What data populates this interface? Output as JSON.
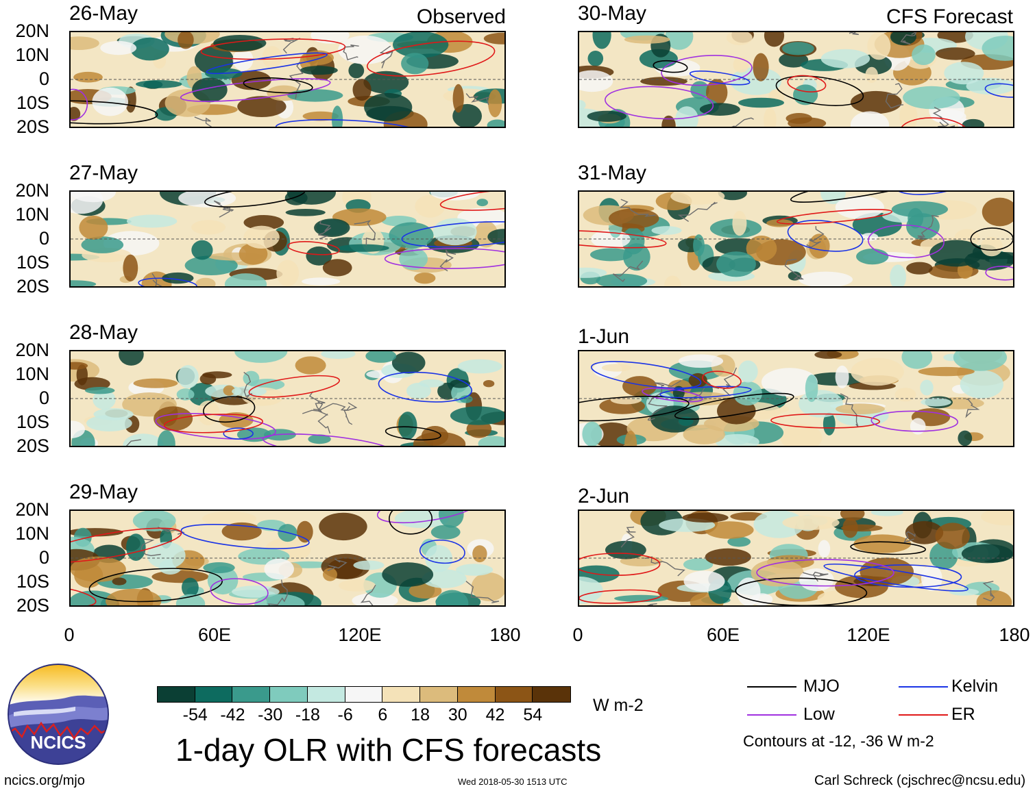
{
  "header": {
    "observed_label": "Observed",
    "forecast_label": "CFS Forecast"
  },
  "observed_panels": [
    {
      "date": "26-May"
    },
    {
      "date": "27-May"
    },
    {
      "date": "28-May"
    },
    {
      "date": "29-May"
    }
  ],
  "forecast_panels": [
    {
      "date": "30-May"
    },
    {
      "date": "31-May"
    },
    {
      "date": "1-Jun"
    },
    {
      "date": "2-Jun"
    }
  ],
  "axes": {
    "lat_labels": [
      "20N",
      "10N",
      "0",
      "10S",
      "20S"
    ],
    "lon_labels": [
      "0",
      "60E",
      "120E",
      "180"
    ]
  },
  "colorbar": {
    "ticks": [
      "-54",
      "-42",
      "-30",
      "-18",
      "-6",
      "6",
      "18",
      "30",
      "42",
      "54"
    ],
    "colors": [
      "#0b3f34",
      "#0d6b5f",
      "#3a9a8c",
      "#7fcbbd",
      "#c4e9e1",
      "#f6f6f6",
      "#f4e2b8",
      "#dcbb7c",
      "#c08a3a",
      "#8c5516",
      "#5a3309"
    ],
    "units": "W m-2"
  },
  "legend": {
    "items": [
      {
        "label": "MJO",
        "color": "#000000"
      },
      {
        "label": "Kelvin",
        "color": "#1a33e6"
      },
      {
        "label": "Low",
        "color": "#a030e0"
      },
      {
        "label": "ER",
        "color": "#e01818"
      }
    ],
    "note": "Contours at -12, -36 W m-2"
  },
  "footer": {
    "logo_text": "NCICS",
    "title": "1-day OLR with CFS forecasts",
    "url": "ncics.org/mjo",
    "timestamp": "Wed 2018-05-30 1513 UTC",
    "credit": "Carl Schreck (cjschrec@ncsu.edu)"
  }
}
